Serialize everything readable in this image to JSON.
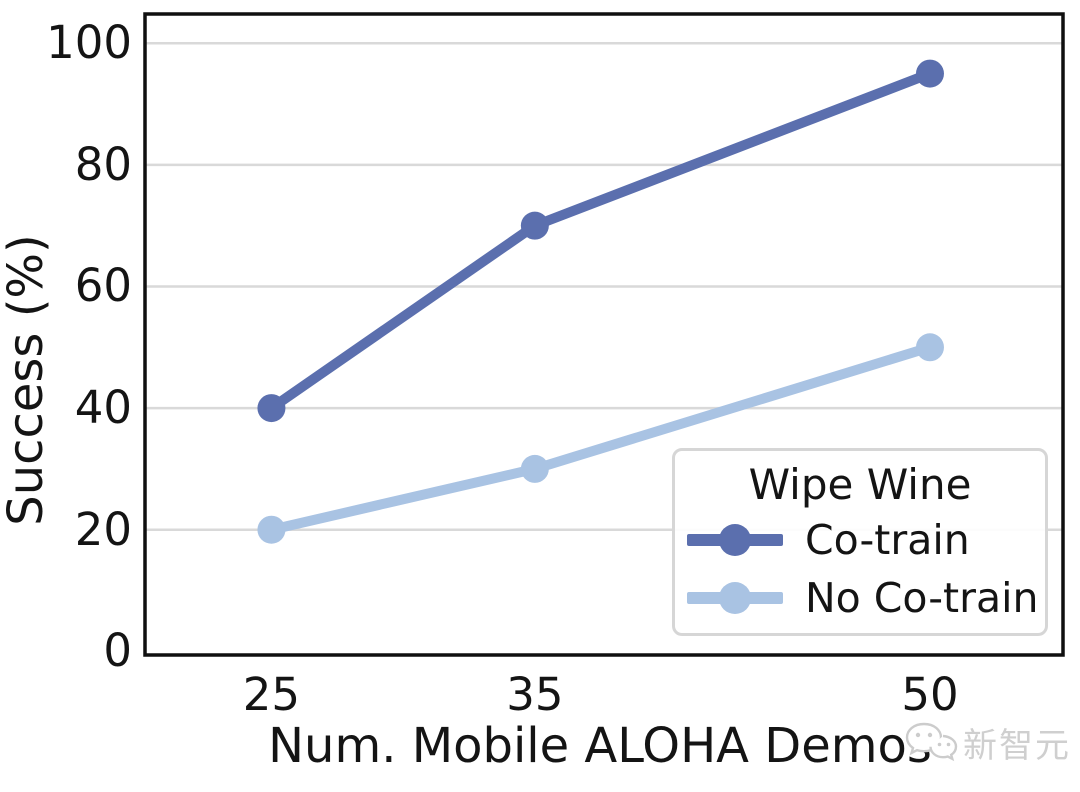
{
  "chart_data": {
    "type": "line",
    "title": "",
    "xlabel": "Num. Mobile ALOHA Demos",
    "ylabel": "Success (%)",
    "x": [
      25,
      35,
      50
    ],
    "x_tick_labels": [
      "25",
      "35",
      "50"
    ],
    "y_ticks": [
      0,
      20,
      40,
      60,
      80,
      100
    ],
    "y_tick_labels": [
      "0",
      "20",
      "40",
      "60",
      "80",
      "100"
    ],
    "xlim": [
      20.2,
      55.05
    ],
    "ylim": [
      -0.6,
      104.8
    ],
    "grid": "horizontal-only",
    "legend": {
      "title": "Wipe Wine",
      "position": "lower-right",
      "entries": [
        "Co-train",
        "No Co-train"
      ]
    },
    "series": [
      {
        "name": "Co-train",
        "color": "#5b6fae",
        "x": [
          25,
          35,
          50
        ],
        "values": [
          40,
          70,
          95
        ]
      },
      {
        "name": "No Co-train",
        "color": "#a9c3e3",
        "x": [
          25,
          35,
          50
        ],
        "values": [
          20,
          30,
          50
        ]
      }
    ],
    "colors": {
      "grid": "#d9d9d9",
      "frame": "#0f0f0f",
      "text": "#141414"
    }
  },
  "watermark": {
    "icon": "wechat-logo-icon",
    "text": "新智元"
  }
}
